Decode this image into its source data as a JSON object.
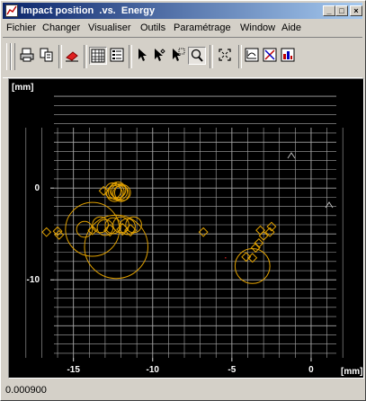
{
  "window": {
    "title": "Impact position  .vs.  Energy",
    "caption_buttons": [
      "_",
      "□",
      "×"
    ]
  },
  "menu": [
    "Fichier",
    "Changer",
    "Visualiser",
    "Outils",
    "Paramétrage",
    "Window",
    "Aide"
  ],
  "toolbar": {
    "buttons": [
      "print-icon",
      "copy-icon",
      "eraser-icon",
      "grid-icon",
      "list-icon",
      "pointer-icon",
      "select-point-icon",
      "select-region-icon",
      "zoom-icon",
      "fit-icon",
      "plot-scatter-icon",
      "plot-mixed-icon",
      "plot-bars-icon"
    ],
    "pressed": [
      "grid-icon",
      "zoom-icon"
    ]
  },
  "plot": {
    "y_unit": "[mm]",
    "x_unit": "[mm]",
    "grid_color": "#a8a8a8",
    "marker_color": "#e0a000"
  },
  "chart_data": {
    "type": "scatter",
    "xlim": [
      -18.5,
      2.5
    ],
    "ylim": [
      -18.5,
      10.5
    ],
    "grid": true,
    "xticks": [
      -15,
      -10,
      -5,
      0
    ],
    "yticks": [
      0,
      -10
    ],
    "xlabel": "[mm]",
    "ylabel": "[mm]",
    "points": [
      {
        "x": -12.3,
        "y": -0.4,
        "s": 0.5
      },
      {
        "x": -12.1,
        "y": -0.4,
        "s": 0.5
      },
      {
        "x": -11.9,
        "y": -0.5,
        "s": 0.5
      },
      {
        "x": -12.5,
        "y": -0.3,
        "s": 0.5
      },
      {
        "x": -12.2,
        "y": -0.2,
        "s": 0.5
      },
      {
        "x": -12.0,
        "y": -0.6,
        "s": 0.5
      },
      {
        "x": -12.4,
        "y": -0.6,
        "s": 0.5
      },
      {
        "x": -12.3,
        "y": 0.6,
        "s": 0.1
      },
      {
        "x": -13.1,
        "y": -0.3,
        "s": 0.3
      },
      {
        "x": -13.8,
        "y": -4.5,
        "s": 1.7
      },
      {
        "x": -14.3,
        "y": -4.5,
        "s": 0.5
      },
      {
        "x": -12.3,
        "y": -6.4,
        "s": 2.0
      },
      {
        "x": -13.3,
        "y": -4.0,
        "s": 0.5
      },
      {
        "x": -13.0,
        "y": -4.3,
        "s": 0.5
      },
      {
        "x": -12.5,
        "y": -4.1,
        "s": 0.5
      },
      {
        "x": -12.0,
        "y": -4.0,
        "s": 0.5
      },
      {
        "x": -11.6,
        "y": -4.2,
        "s": 0.5
      },
      {
        "x": -11.2,
        "y": -4.0,
        "s": 0.5
      },
      {
        "x": -12.7,
        "y": -4.6,
        "s": 0.4
      },
      {
        "x": -11.9,
        "y": -4.5,
        "s": 0.4
      },
      {
        "x": -11.4,
        "y": -4.6,
        "s": 0.4
      },
      {
        "x": -16.7,
        "y": -4.8,
        "s": 0.3
      },
      {
        "x": -16.0,
        "y": -4.7,
        "s": 0.3
      },
      {
        "x": -15.9,
        "y": -5.1,
        "s": 0.3
      },
      {
        "x": -13.8,
        "y": -4.6,
        "s": 0.3
      },
      {
        "x": -6.8,
        "y": -4.8,
        "s": 0.3
      },
      {
        "x": -5.4,
        "y": -7.6,
        "s": 0.1
      },
      {
        "x": -3.7,
        "y": -8.5,
        "s": 1.1
      },
      {
        "x": -4.1,
        "y": -7.5,
        "s": 0.3
      },
      {
        "x": -3.7,
        "y": -7.6,
        "s": 0.3
      },
      {
        "x": -3.5,
        "y": -6.5,
        "s": 0.3
      },
      {
        "x": -3.3,
        "y": -6.0,
        "s": 0.3
      },
      {
        "x": -3.0,
        "y": -5.2,
        "s": 0.3
      },
      {
        "x": -2.6,
        "y": -4.8,
        "s": 0.3
      },
      {
        "x": -3.2,
        "y": -4.6,
        "s": 0.3
      },
      {
        "x": -2.5,
        "y": -4.2,
        "s": 0.3
      }
    ]
  },
  "status": {
    "text": "0.000900"
  }
}
